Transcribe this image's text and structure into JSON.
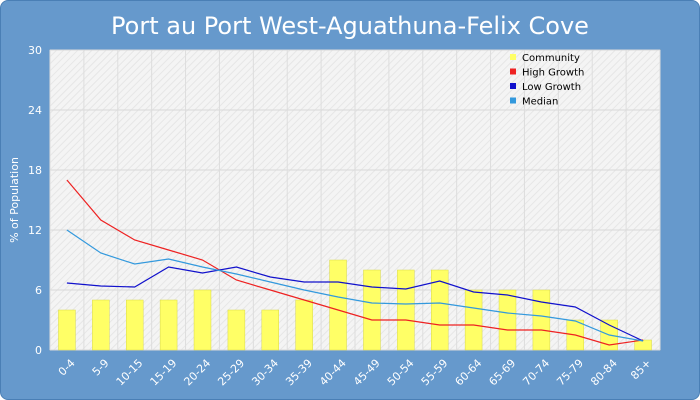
{
  "chart_data": {
    "type": "bar",
    "title": "Port au Port West-Aguathuna-Felix Cove",
    "ylabel": "% of Population",
    "xlabel": "",
    "ylim": [
      0,
      30
    ],
    "yticks": [
      0,
      6,
      12,
      18,
      24,
      30
    ],
    "grid": true,
    "legend_position": "top-right",
    "categories": [
      "0-4",
      "5-9",
      "10-15",
      "15-19",
      "20-24",
      "25-29",
      "30-34",
      "35-39",
      "40-44",
      "45-49",
      "50-54",
      "55-59",
      "60-64",
      "65-69",
      "70-74",
      "75-79",
      "80-84",
      "85+"
    ],
    "bars": {
      "name": "Community",
      "color": "#ffff66",
      "values": [
        4,
        5,
        5,
        5,
        6,
        4,
        4,
        5,
        9,
        8,
        8,
        8,
        6,
        6,
        6,
        3,
        3,
        1
      ]
    },
    "lines": [
      {
        "name": "High Growth",
        "color": "#ee2222",
        "values": [
          17,
          13,
          11,
          10,
          9,
          7,
          6,
          5,
          4,
          3,
          3,
          2.5,
          2.5,
          2,
          2,
          1.5,
          0.5,
          1
        ]
      },
      {
        "name": "Low Growth",
        "color": "#1111cc",
        "values": [
          6.7,
          6.4,
          6.3,
          8.3,
          7.7,
          8.3,
          7.3,
          6.8,
          6.8,
          6.3,
          6.1,
          6.9,
          5.8,
          5.5,
          4.8,
          4.3,
          2.5,
          0.9
        ]
      },
      {
        "name": "Median",
        "color": "#3399dd",
        "values": [
          12,
          9.7,
          8.6,
          9.1,
          8.3,
          7.6,
          6.8,
          6,
          5.3,
          4.7,
          4.6,
          4.7,
          4.2,
          3.7,
          3.4,
          2.9,
          1.5,
          0.9
        ]
      }
    ]
  }
}
